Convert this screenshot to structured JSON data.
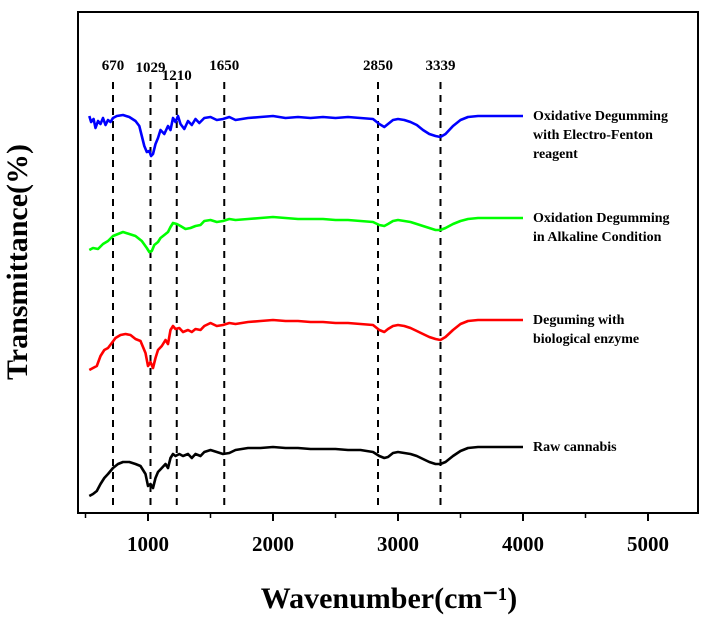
{
  "chart_data": {
    "type": "line",
    "xlabel": "Wavenumber(cm⁻¹)",
    "ylabel": "Transmittance(%)",
    "xlim": [
      440,
      5400
    ],
    "x_ticks": [
      1000,
      2000,
      3000,
      4000,
      5000
    ],
    "y_ticks_shown": false,
    "grid": false,
    "peak_markers": [
      {
        "label": "670",
        "x": 720
      },
      {
        "label": "1029",
        "x": 1020
      },
      {
        "label": "1210",
        "x": 1230
      },
      {
        "label": "1650",
        "x": 1610
      },
      {
        "label": "2850",
        "x": 2840
      },
      {
        "label": "3339",
        "x": 3340
      }
    ],
    "series": [
      {
        "name": "Oxidative Degumming with Electro-Fenton reagent",
        "name_lines": [
          "Oxidative Degumming",
          "with Electro-Fenton",
          "reagent"
        ],
        "color": "#0000ff",
        "offset": 80,
        "points": [
          [
            530,
            0
          ],
          [
            545,
            6
          ],
          [
            565,
            3
          ],
          [
            580,
            12
          ],
          [
            600,
            5
          ],
          [
            620,
            8
          ],
          [
            640,
            2
          ],
          [
            660,
            9
          ],
          [
            680,
            4
          ],
          [
            700,
            6
          ],
          [
            720,
            2
          ],
          [
            750,
            0
          ],
          [
            800,
            -1
          ],
          [
            850,
            1
          ],
          [
            900,
            5
          ],
          [
            930,
            10
          ],
          [
            950,
            20
          ],
          [
            970,
            30
          ],
          [
            990,
            36
          ],
          [
            1010,
            35
          ],
          [
            1025,
            40
          ],
          [
            1040,
            38
          ],
          [
            1060,
            28
          ],
          [
            1080,
            22
          ],
          [
            1100,
            14
          ],
          [
            1130,
            18
          ],
          [
            1160,
            10
          ],
          [
            1180,
            14
          ],
          [
            1200,
            2
          ],
          [
            1220,
            6
          ],
          [
            1240,
            0
          ],
          [
            1260,
            8
          ],
          [
            1290,
            13
          ],
          [
            1320,
            5
          ],
          [
            1350,
            9
          ],
          [
            1380,
            3
          ],
          [
            1410,
            7
          ],
          [
            1450,
            2
          ],
          [
            1500,
            1
          ],
          [
            1550,
            4
          ],
          [
            1600,
            3
          ],
          [
            1650,
            1
          ],
          [
            1700,
            4
          ],
          [
            1800,
            2
          ],
          [
            1900,
            1
          ],
          [
            2000,
            0
          ],
          [
            2100,
            2
          ],
          [
            2200,
            1
          ],
          [
            2300,
            2
          ],
          [
            2400,
            1
          ],
          [
            2500,
            2
          ],
          [
            2600,
            1
          ],
          [
            2700,
            2
          ],
          [
            2800,
            3
          ],
          [
            2850,
            8
          ],
          [
            2890,
            11
          ],
          [
            2920,
            8
          ],
          [
            2960,
            4
          ],
          [
            3000,
            3
          ],
          [
            3050,
            4
          ],
          [
            3100,
            6
          ],
          [
            3150,
            9
          ],
          [
            3200,
            14
          ],
          [
            3250,
            18
          ],
          [
            3300,
            20
          ],
          [
            3339,
            21
          ],
          [
            3380,
            18
          ],
          [
            3440,
            10
          ],
          [
            3500,
            4
          ],
          [
            3560,
            1
          ],
          [
            3640,
            0
          ],
          [
            3700,
            0
          ],
          [
            3800,
            0
          ],
          [
            3900,
            0
          ],
          [
            4000,
            0
          ]
        ]
      },
      {
        "name": "Oxidation Degumming in Alkaline Condition",
        "name_lines": [
          "Oxidation Degumming",
          "in Alkaline Condition"
        ],
        "color": "#00ff00",
        "offset": 182,
        "points": [
          [
            530,
            32
          ],
          [
            560,
            30
          ],
          [
            600,
            31
          ],
          [
            640,
            26
          ],
          [
            680,
            23
          ],
          [
            720,
            18
          ],
          [
            760,
            16
          ],
          [
            800,
            14
          ],
          [
            850,
            16
          ],
          [
            900,
            18
          ],
          [
            950,
            23
          ],
          [
            990,
            30
          ],
          [
            1010,
            34
          ],
          [
            1030,
            33
          ],
          [
            1050,
            27
          ],
          [
            1080,
            24
          ],
          [
            1100,
            20
          ],
          [
            1130,
            17
          ],
          [
            1160,
            14
          ],
          [
            1180,
            9
          ],
          [
            1200,
            5
          ],
          [
            1230,
            6
          ],
          [
            1260,
            8
          ],
          [
            1300,
            11
          ],
          [
            1340,
            10
          ],
          [
            1380,
            8
          ],
          [
            1420,
            7
          ],
          [
            1450,
            3
          ],
          [
            1500,
            2
          ],
          [
            1550,
            4
          ],
          [
            1600,
            3
          ],
          [
            1650,
            1
          ],
          [
            1700,
            2
          ],
          [
            1800,
            1
          ],
          [
            1900,
            0
          ],
          [
            2000,
            -1
          ],
          [
            2100,
            0
          ],
          [
            2200,
            1
          ],
          [
            2300,
            1
          ],
          [
            2400,
            1
          ],
          [
            2500,
            2
          ],
          [
            2600,
            2
          ],
          [
            2700,
            3
          ],
          [
            2800,
            4
          ],
          [
            2850,
            7
          ],
          [
            2890,
            8
          ],
          [
            2920,
            6
          ],
          [
            2960,
            3
          ],
          [
            3000,
            2
          ],
          [
            3050,
            3
          ],
          [
            3100,
            4
          ],
          [
            3150,
            6
          ],
          [
            3200,
            8
          ],
          [
            3250,
            10
          ],
          [
            3300,
            12
          ],
          [
            3339,
            12
          ],
          [
            3380,
            10
          ],
          [
            3440,
            6
          ],
          [
            3500,
            3
          ],
          [
            3560,
            1
          ],
          [
            3640,
            0
          ],
          [
            3700,
            0
          ],
          [
            3800,
            0
          ],
          [
            3900,
            0
          ],
          [
            4000,
            0
          ]
        ]
      },
      {
        "name": "Deguming with biological enzyme",
        "name_lines": [
          "Deguming with",
          "biological enzyme"
        ],
        "color": "#ff0000",
        "offset": 282,
        "points": [
          [
            530,
            52
          ],
          [
            560,
            50
          ],
          [
            590,
            48
          ],
          [
            620,
            38
          ],
          [
            650,
            32
          ],
          [
            680,
            30
          ],
          [
            710,
            25
          ],
          [
            740,
            20
          ],
          [
            780,
            17
          ],
          [
            820,
            16
          ],
          [
            860,
            17
          ],
          [
            900,
            21
          ],
          [
            940,
            23
          ],
          [
            980,
            35
          ],
          [
            1000,
            48
          ],
          [
            1020,
            44
          ],
          [
            1040,
            50
          ],
          [
            1060,
            40
          ],
          [
            1080,
            32
          ],
          [
            1110,
            28
          ],
          [
            1140,
            22
          ],
          [
            1160,
            26
          ],
          [
            1180,
            12
          ],
          [
            1200,
            8
          ],
          [
            1220,
            11
          ],
          [
            1250,
            10
          ],
          [
            1280,
            14
          ],
          [
            1320,
            12
          ],
          [
            1350,
            14
          ],
          [
            1380,
            11
          ],
          [
            1420,
            12
          ],
          [
            1450,
            8
          ],
          [
            1500,
            5
          ],
          [
            1550,
            8
          ],
          [
            1600,
            7
          ],
          [
            1650,
            5
          ],
          [
            1700,
            6
          ],
          [
            1800,
            4
          ],
          [
            1900,
            3
          ],
          [
            2000,
            2
          ],
          [
            2100,
            3
          ],
          [
            2200,
            3
          ],
          [
            2300,
            4
          ],
          [
            2400,
            4
          ],
          [
            2500,
            5
          ],
          [
            2600,
            5
          ],
          [
            2700,
            6
          ],
          [
            2800,
            7
          ],
          [
            2850,
            12
          ],
          [
            2890,
            14
          ],
          [
            2920,
            11
          ],
          [
            2960,
            8
          ],
          [
            3000,
            7
          ],
          [
            3050,
            8
          ],
          [
            3100,
            10
          ],
          [
            3150,
            13
          ],
          [
            3200,
            16
          ],
          [
            3250,
            19
          ],
          [
            3300,
            21
          ],
          [
            3339,
            22
          ],
          [
            3380,
            19
          ],
          [
            3440,
            12
          ],
          [
            3500,
            6
          ],
          [
            3560,
            3
          ],
          [
            3640,
            2
          ],
          [
            3700,
            2
          ],
          [
            3800,
            2
          ],
          [
            3900,
            2
          ],
          [
            4000,
            2
          ]
        ]
      },
      {
        "name": "Raw cannabis",
        "name_lines": [
          "Raw cannabis"
        ],
        "color": "#000000",
        "offset": 380,
        "points": [
          [
            530,
            80
          ],
          [
            560,
            78
          ],
          [
            590,
            75
          ],
          [
            620,
            68
          ],
          [
            650,
            62
          ],
          [
            680,
            58
          ],
          [
            720,
            52
          ],
          [
            760,
            48
          ],
          [
            800,
            46
          ],
          [
            850,
            46
          ],
          [
            900,
            48
          ],
          [
            940,
            50
          ],
          [
            980,
            58
          ],
          [
            1000,
            70
          ],
          [
            1020,
            68
          ],
          [
            1040,
            72
          ],
          [
            1060,
            62
          ],
          [
            1080,
            56
          ],
          [
            1110,
            52
          ],
          [
            1140,
            48
          ],
          [
            1160,
            52
          ],
          [
            1180,
            42
          ],
          [
            1200,
            38
          ],
          [
            1220,
            40
          ],
          [
            1250,
            38
          ],
          [
            1280,
            40
          ],
          [
            1320,
            38
          ],
          [
            1350,
            42
          ],
          [
            1380,
            38
          ],
          [
            1420,
            40
          ],
          [
            1450,
            36
          ],
          [
            1500,
            34
          ],
          [
            1550,
            36
          ],
          [
            1600,
            38
          ],
          [
            1650,
            37
          ],
          [
            1700,
            34
          ],
          [
            1800,
            32
          ],
          [
            1900,
            32
          ],
          [
            2000,
            31
          ],
          [
            2100,
            32
          ],
          [
            2200,
            32
          ],
          [
            2300,
            33
          ],
          [
            2400,
            33
          ],
          [
            2500,
            33
          ],
          [
            2600,
            34
          ],
          [
            2700,
            34
          ],
          [
            2800,
            36
          ],
          [
            2850,
            40
          ],
          [
            2890,
            42
          ],
          [
            2920,
            41
          ],
          [
            2960,
            37
          ],
          [
            3000,
            36
          ],
          [
            3050,
            37
          ],
          [
            3100,
            38
          ],
          [
            3150,
            40
          ],
          [
            3200,
            43
          ],
          [
            3250,
            46
          ],
          [
            3300,
            48
          ],
          [
            3339,
            48
          ],
          [
            3380,
            46
          ],
          [
            3440,
            40
          ],
          [
            3500,
            35
          ],
          [
            3560,
            32
          ],
          [
            3640,
            31
          ],
          [
            3700,
            31
          ],
          [
            3800,
            31
          ],
          [
            3900,
            31
          ],
          [
            4000,
            31
          ]
        ]
      }
    ]
  }
}
